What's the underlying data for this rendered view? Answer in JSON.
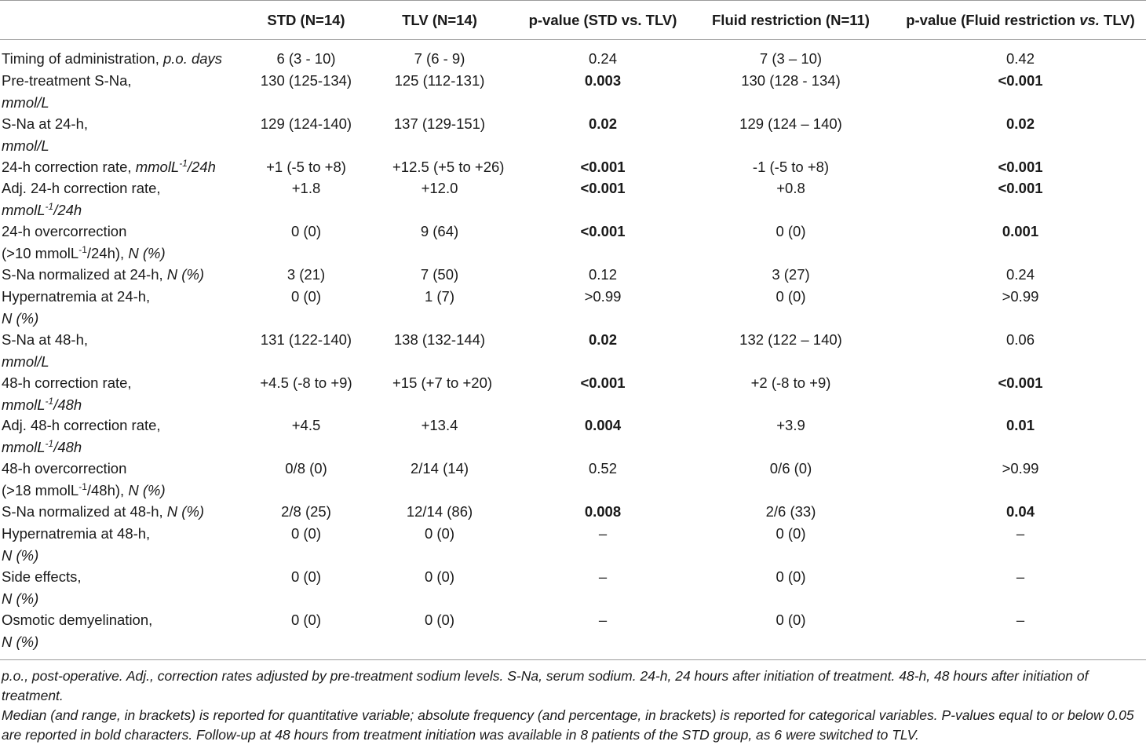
{
  "headers": {
    "std": "STD (N=14)",
    "tlv": "TLV (N=14)",
    "p1": "p-value (STD vs. TLV)",
    "fluid": "Fluid restriction (N=11)",
    "p2_prefix": "p-value (Fluid restriction ",
    "p2_vs": "vs.",
    "p2_suffix": " TLV)"
  },
  "rows": [
    {
      "l1": "Timing of administration, ",
      "l1i": "p.o. days",
      "std": "6 (3 - 10)",
      "tlv": "7 (6 - 9)",
      "p1": "0.24",
      "fluid": "7 (3 – 10)",
      "p2": "0.42"
    },
    {
      "l1": "Pre-treatment S-Na,",
      "l2i": "mmol/L",
      "std": "130 (125-134)",
      "tlv": "125 (112-131)",
      "p1": "0.003",
      "fluid": "130 (128 - 134)",
      "p2": "<0.001"
    },
    {
      "l1": "S-Na at 24-h,",
      "l2i": "mmol/L",
      "std": "129 (124-140)",
      "tlv": "137 (129-151)",
      "p1": "0.02",
      "fluid": "129 (124 – 140)",
      "p2": "0.02"
    },
    {
      "l1": "24-h correction rate, ",
      "l1i": "mmolL",
      "sup": "-1",
      "l1i2": "/24h",
      "std": "+1 (-5 to +8)",
      "tlv": "+12.5 (+5 to +26)",
      "p1": "<0.001",
      "fluid": "-1 (-5 to +8)",
      "p2": "<0.001"
    },
    {
      "l1": "Adj. 24-h correction rate,",
      "l2i": "mmolL",
      "sup": "-1",
      "l2i2": "/24h",
      "std": "+1.8",
      "tlv": "+12.0",
      "p1": "<0.001",
      "fluid": "+0.8",
      "p2": "<0.001"
    },
    {
      "l1": "24-h overcorrection",
      "l2": "(>10 mmolL",
      "sup": "-1",
      "l2b": "/24h), ",
      "l2i": "N (%)",
      "std": "0 (0)",
      "tlv": "9 (64)",
      "p1": "<0.001",
      "fluid": "0 (0)",
      "p2": "0.001"
    },
    {
      "l1": "S-Na normalized at 24-h, ",
      "l1i": "N (%)",
      "std": "3 (21)",
      "tlv": "7 (50)",
      "p1": "0.12",
      "fluid": "3 (27)",
      "p2": "0.24"
    },
    {
      "l1": "Hypernatremia at 24-h,",
      "l2i": "N (%)",
      "std": "0 (0)",
      "tlv": "1 (7)",
      "p1": ">0.99",
      "fluid": "0 (0)",
      "p2": ">0.99"
    },
    {
      "l1": "S-Na at 48-h,",
      "l2i": "mmol/L",
      "std": "131 (122-140)",
      "tlv": "138 (132-144)",
      "p1": "0.02",
      "fluid": "132 (122 – 140)",
      "p2": "0.06"
    },
    {
      "l1": "48-h correction rate,",
      "l2i": "mmolL",
      "sup": "-1",
      "l2i2": "/48h",
      "std": "+4.5 (-8 to +9)",
      "tlv": "+15 (+7 to +20)",
      "p1": "<0.001",
      "fluid": "+2 (-8 to +9)",
      "p2": "<0.001"
    },
    {
      "l1": "Adj. 48-h correction rate,",
      "l2i": "mmolL",
      "sup": "-1",
      "l2i2": "/48h",
      "std": "+4.5",
      "tlv": "+13.4",
      "p1": "0.004",
      "fluid": "+3.9",
      "p2": "0.01"
    },
    {
      "l1": "48-h overcorrection",
      "l2": "(>18 mmolL",
      "sup": "-1",
      "l2b": "/48h), ",
      "l2i": "N (%)",
      "std": "0/8 (0)",
      "tlv": "2/14 (14)",
      "p1": "0.52",
      "fluid": "0/6 (0)",
      "p2": ">0.99"
    },
    {
      "l1": "S-Na normalized at 48-h, ",
      "l1i": "N (%)",
      "std": "2/8 (25)",
      "tlv": "12/14 (86)",
      "p1": "0.008",
      "fluid": "2/6 (33)",
      "p2": "0.04"
    },
    {
      "l1": "Hypernatremia at 48-h,",
      "l2i": "N (%)",
      "std": "0 (0)",
      "tlv": "0 (0)",
      "p1": "–",
      "fluid": "0 (0)",
      "p2": "–"
    },
    {
      "l1": "Side effects,",
      "l2i": "N (%)",
      "std": "0 (0)",
      "tlv": "0 (0)",
      "p1": "–",
      "fluid": "0 (0)",
      "p2": "–"
    },
    {
      "l1": "Osmotic demyelination,",
      "l2i": "N (%)",
      "std": "0 (0)",
      "tlv": "0 (0)",
      "p1": "–",
      "fluid": "0 (0)",
      "p2": "–"
    }
  ],
  "footnotes": {
    "line1": "p.o., post-operative. Adj., correction rates adjusted by pre-treatment sodium levels. S-Na, serum sodium. 24-h, 24 hours after initiation of treatment. 48-h, 48 hours after initiation of",
    "line2": "treatment.",
    "line3": "Median (and range, in brackets) is reported for quantitative variable; absolute frequency (and percentage, in brackets) is reported for categorical variables. P-values equal to or below 0.05",
    "line4": "are reported in bold characters. Follow-up at 48 hours from treatment initiation was available in 8 patients of the STD group, as 6 were switched to TLV."
  }
}
